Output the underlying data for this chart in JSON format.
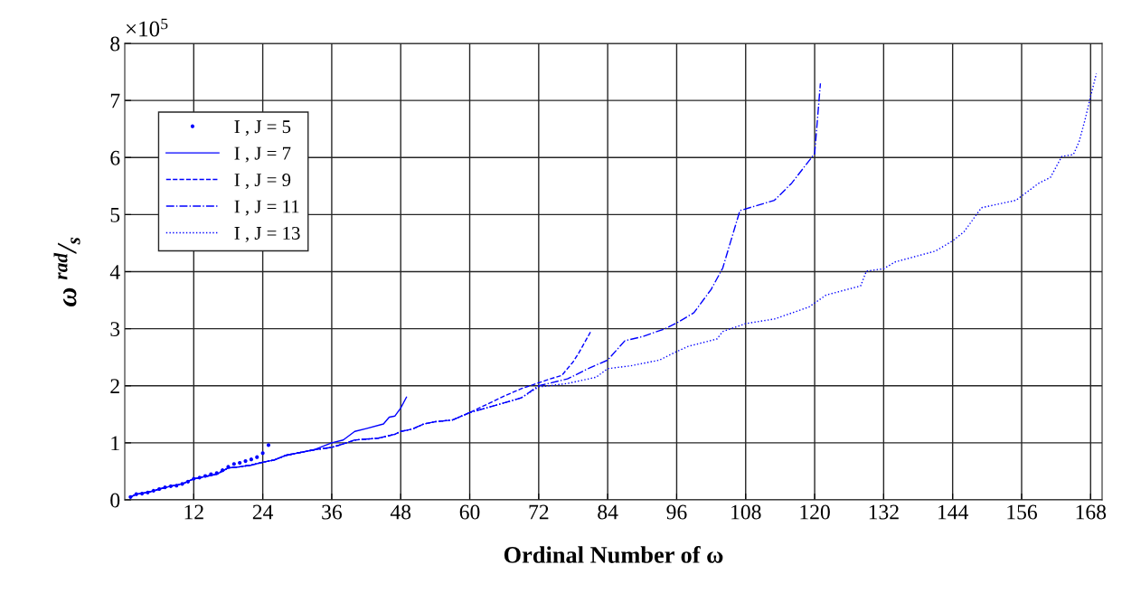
{
  "chart_data": {
    "type": "line",
    "xlabel": "Ordinal Number of ω",
    "ylabel": "ω $^{rad}$/$_{s}$",
    "annotations": [
      "×10$^{5}$"
    ],
    "xlim": [
      0,
      170
    ],
    "xticks": [
      12,
      24,
      36,
      48,
      60,
      72,
      84,
      96,
      108,
      120,
      132,
      144,
      156,
      168
    ],
    "ylim": [
      0,
      8
    ],
    "yticks": [
      0,
      1,
      2,
      3,
      4,
      5,
      6,
      7,
      8
    ],
    "grid": true,
    "legend": "top left",
    "series": [
      {
        "name": "I , J = 5",
        "type": "scatter",
        "marker": "circle",
        "color": "#0000ff",
        "x": [
          1,
          2,
          3,
          4,
          5,
          6,
          7,
          8,
          9,
          10,
          11,
          12,
          13,
          14,
          15,
          16,
          17,
          18,
          19,
          20,
          21,
          22,
          23,
          24,
          25
        ],
        "values": [
          0.05,
          0.1,
          0.11,
          0.13,
          0.16,
          0.19,
          0.22,
          0.24,
          0.25,
          0.28,
          0.32,
          0.37,
          0.39,
          0.42,
          0.45,
          0.47,
          0.52,
          0.58,
          0.63,
          0.65,
          0.68,
          0.71,
          0.75,
          0.82,
          0.96
        ]
      },
      {
        "name": "I , J = 7",
        "line_style": "solid",
        "color": "#0000ff",
        "x": [
          1,
          2,
          4,
          6,
          8,
          10,
          12,
          14,
          16,
          18,
          20,
          22,
          24,
          26,
          28,
          30,
          33,
          36,
          38,
          40,
          42,
          45,
          46,
          47,
          48,
          49
        ],
        "values": [
          0.05,
          0.1,
          0.13,
          0.19,
          0.24,
          0.28,
          0.37,
          0.41,
          0.45,
          0.56,
          0.58,
          0.61,
          0.66,
          0.7,
          0.78,
          0.82,
          0.88,
          1.0,
          1.05,
          1.2,
          1.25,
          1.33,
          1.45,
          1.47,
          1.61,
          1.8
        ]
      },
      {
        "name": "I , J = 9",
        "line_style": "dashed",
        "color": "#0000ff",
        "x": [
          1,
          2,
          4,
          6,
          8,
          10,
          12,
          14,
          16,
          18,
          20,
          22,
          24,
          26,
          28,
          30,
          33,
          36,
          38,
          40,
          44,
          47,
          48,
          50,
          52,
          54,
          57,
          60,
          66,
          69,
          74,
          76,
          78,
          79,
          81
        ],
        "values": [
          0.05,
          0.1,
          0.13,
          0.19,
          0.24,
          0.28,
          0.37,
          0.41,
          0.45,
          0.56,
          0.58,
          0.61,
          0.66,
          0.7,
          0.78,
          0.82,
          0.88,
          0.92,
          0.98,
          1.05,
          1.08,
          1.15,
          1.2,
          1.24,
          1.33,
          1.37,
          1.4,
          1.53,
          1.82,
          1.95,
          2.12,
          2.18,
          2.42,
          2.58,
          2.94
        ]
      },
      {
        "name": "I , J = 11",
        "line_style": "dashdot",
        "color": "#0000ff",
        "x": [
          1,
          2,
          4,
          6,
          8,
          10,
          12,
          14,
          16,
          18,
          20,
          22,
          24,
          26,
          28,
          30,
          33,
          36,
          38,
          40,
          44,
          47,
          48,
          50,
          52,
          54,
          57,
          60,
          66,
          69,
          72,
          77,
          81,
          84,
          87,
          90,
          94,
          96,
          99,
          102,
          104,
          107,
          113,
          116,
          120,
          121
        ],
        "values": [
          0.05,
          0.1,
          0.13,
          0.19,
          0.24,
          0.28,
          0.37,
          0.41,
          0.45,
          0.56,
          0.58,
          0.61,
          0.66,
          0.7,
          0.78,
          0.82,
          0.88,
          0.92,
          0.98,
          1.05,
          1.08,
          1.15,
          1.2,
          1.24,
          1.33,
          1.37,
          1.4,
          1.53,
          1.7,
          1.79,
          2.0,
          2.12,
          2.32,
          2.45,
          2.79,
          2.86,
          3.0,
          3.1,
          3.28,
          3.69,
          4.06,
          5.07,
          5.25,
          5.55,
          6.07,
          7.3
        ]
      },
      {
        "name": "I , J = 13",
        "line_style": "dotted",
        "color": "#0000ff",
        "x": [
          1,
          2,
          4,
          6,
          8,
          10,
          12,
          14,
          16,
          18,
          20,
          22,
          24,
          26,
          28,
          30,
          33,
          36,
          38,
          40,
          44,
          47,
          48,
          50,
          52,
          54,
          57,
          60,
          66,
          69,
          72,
          77,
          82,
          84,
          88,
          93,
          96,
          98,
          103,
          104,
          108,
          113,
          119,
          122,
          128,
          129,
          132,
          134,
          141,
          144,
          146,
          149,
          155,
          159,
          161,
          163,
          165,
          166,
          167,
          168,
          169
        ],
        "values": [
          0.05,
          0.1,
          0.13,
          0.19,
          0.24,
          0.28,
          0.37,
          0.41,
          0.45,
          0.56,
          0.58,
          0.61,
          0.66,
          0.7,
          0.78,
          0.82,
          0.88,
          0.92,
          0.98,
          1.05,
          1.08,
          1.15,
          1.2,
          1.24,
          1.33,
          1.37,
          1.4,
          1.53,
          1.7,
          1.79,
          1.98,
          2.04,
          2.15,
          2.3,
          2.35,
          2.45,
          2.6,
          2.69,
          2.82,
          2.95,
          3.09,
          3.17,
          3.38,
          3.59,
          3.75,
          4.01,
          4.05,
          4.17,
          4.36,
          4.54,
          4.7,
          5.12,
          5.25,
          5.55,
          5.65,
          6.02,
          6.05,
          6.28,
          6.65,
          7.07,
          7.47
        ]
      }
    ]
  }
}
